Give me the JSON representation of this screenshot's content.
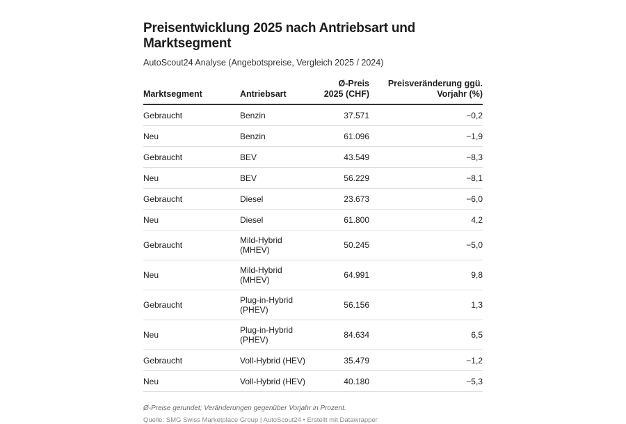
{
  "title": "Preisentwicklung 2025 nach Antriebsart und Marktsegment",
  "subtitle": "AutoScout24 Analyse (Angebotspreise, Vergleich 2025 / 2024)",
  "columns": [
    "Marktsegment",
    "Antriebsart",
    "Ø-Preis 2025 (CHF)",
    "Preisveränderung ggü. Vorjahr (%)"
  ],
  "rows": [
    [
      "Gebraucht",
      "Benzin",
      "37.571",
      "−0,2"
    ],
    [
      "Neu",
      "Benzin",
      "61.096",
      "−1,9"
    ],
    [
      "Gebraucht",
      "BEV",
      "43.549",
      "−8,3"
    ],
    [
      "Neu",
      "BEV",
      "56.229",
      "−8,1"
    ],
    [
      "Gebraucht",
      "Diesel",
      "23.673",
      "−6,0"
    ],
    [
      "Neu",
      "Diesel",
      "61.800",
      "4,2"
    ],
    [
      "Gebraucht",
      "Mild-Hybrid (MHEV)",
      "50.245",
      "−5,0"
    ],
    [
      "Neu",
      "Mild-Hybrid (MHEV)",
      "64.991",
      "9,8"
    ],
    [
      "Gebraucht",
      "Plug-in-Hybrid (PHEV)",
      "56.156",
      "1,3"
    ],
    [
      "Neu",
      "Plug-in-Hybrid (PHEV)",
      "84.634",
      "6,5"
    ],
    [
      "Gebraucht",
      "Voll-Hybrid (HEV)",
      "35.479",
      "−1,2"
    ],
    [
      "Neu",
      "Voll-Hybrid (HEV)",
      "40.180",
      "−5,3"
    ]
  ],
  "note": "Ø-Preise gerundet; Veränderungen gegenüber Vorjahr in Prozent.",
  "source": "Quelle: SMG Swiss Marketplace Group | AutoScout24 • Erstellt mit Datawrapper"
}
